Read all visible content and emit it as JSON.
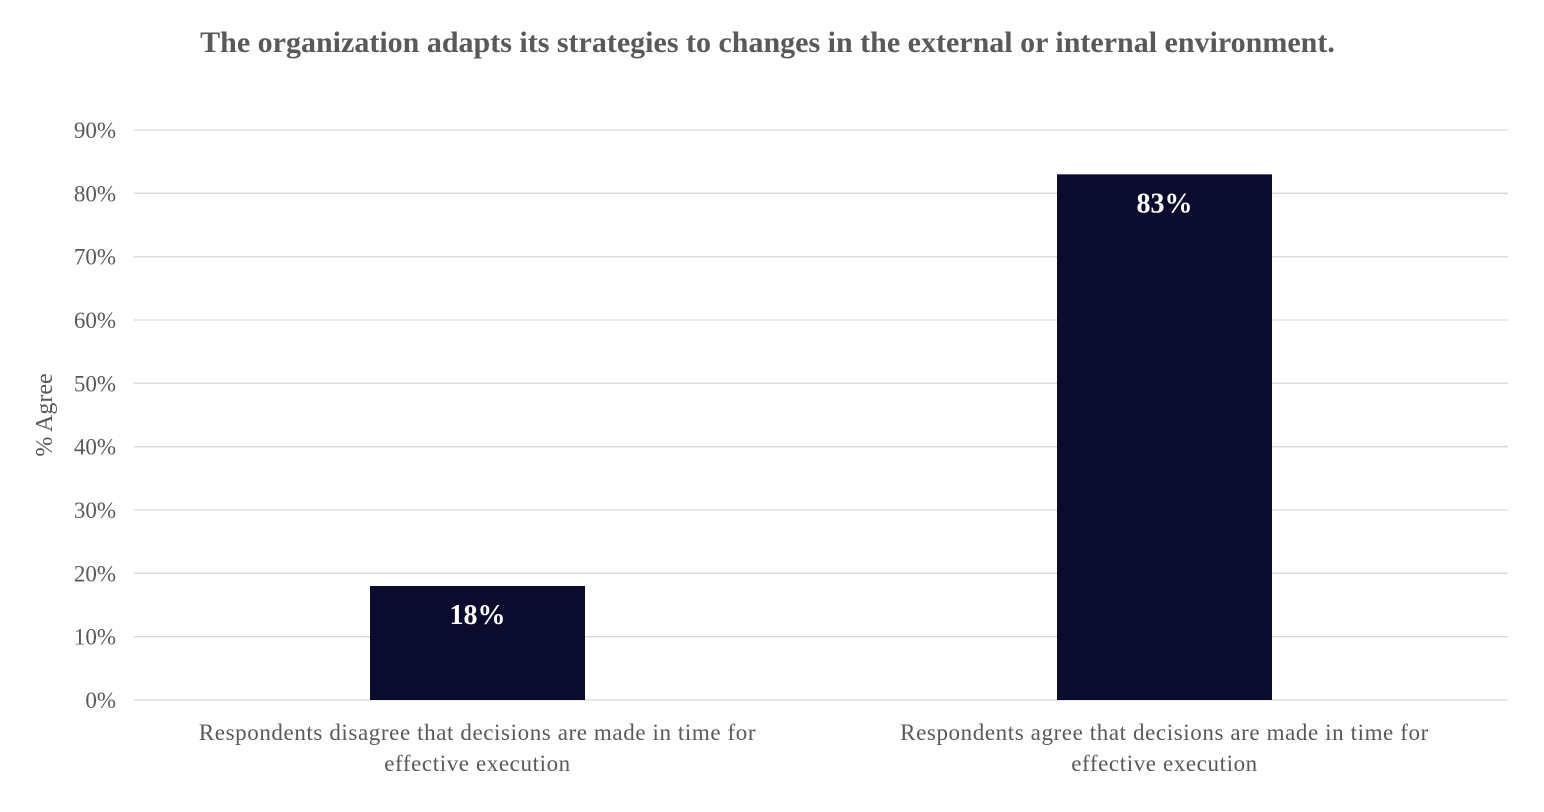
{
  "chart_data": {
    "type": "bar",
    "title": "The organization adapts its strategies to changes in the external or internal environment.",
    "ylabel": "% Agree",
    "xlabel": "",
    "ylim": [
      0,
      90
    ],
    "y_ticks": [
      "0%",
      "10%",
      "20%",
      "30%",
      "40%",
      "50%",
      "60%",
      "70%",
      "80%",
      "90%"
    ],
    "categories": [
      [
        "Respondents disagree that decisions are made in time for",
        "effective execution"
      ],
      [
        "Respondents agree that decisions are made in time for",
        "effective execution"
      ]
    ],
    "values": [
      18,
      83
    ],
    "data_labels": [
      "18%",
      "83%"
    ],
    "grid": true,
    "legend": "none",
    "bar_color": "#0b0b2e",
    "label_color": "#ffffff",
    "text_color": "#595959",
    "grid_color": "#d9d9d9"
  }
}
